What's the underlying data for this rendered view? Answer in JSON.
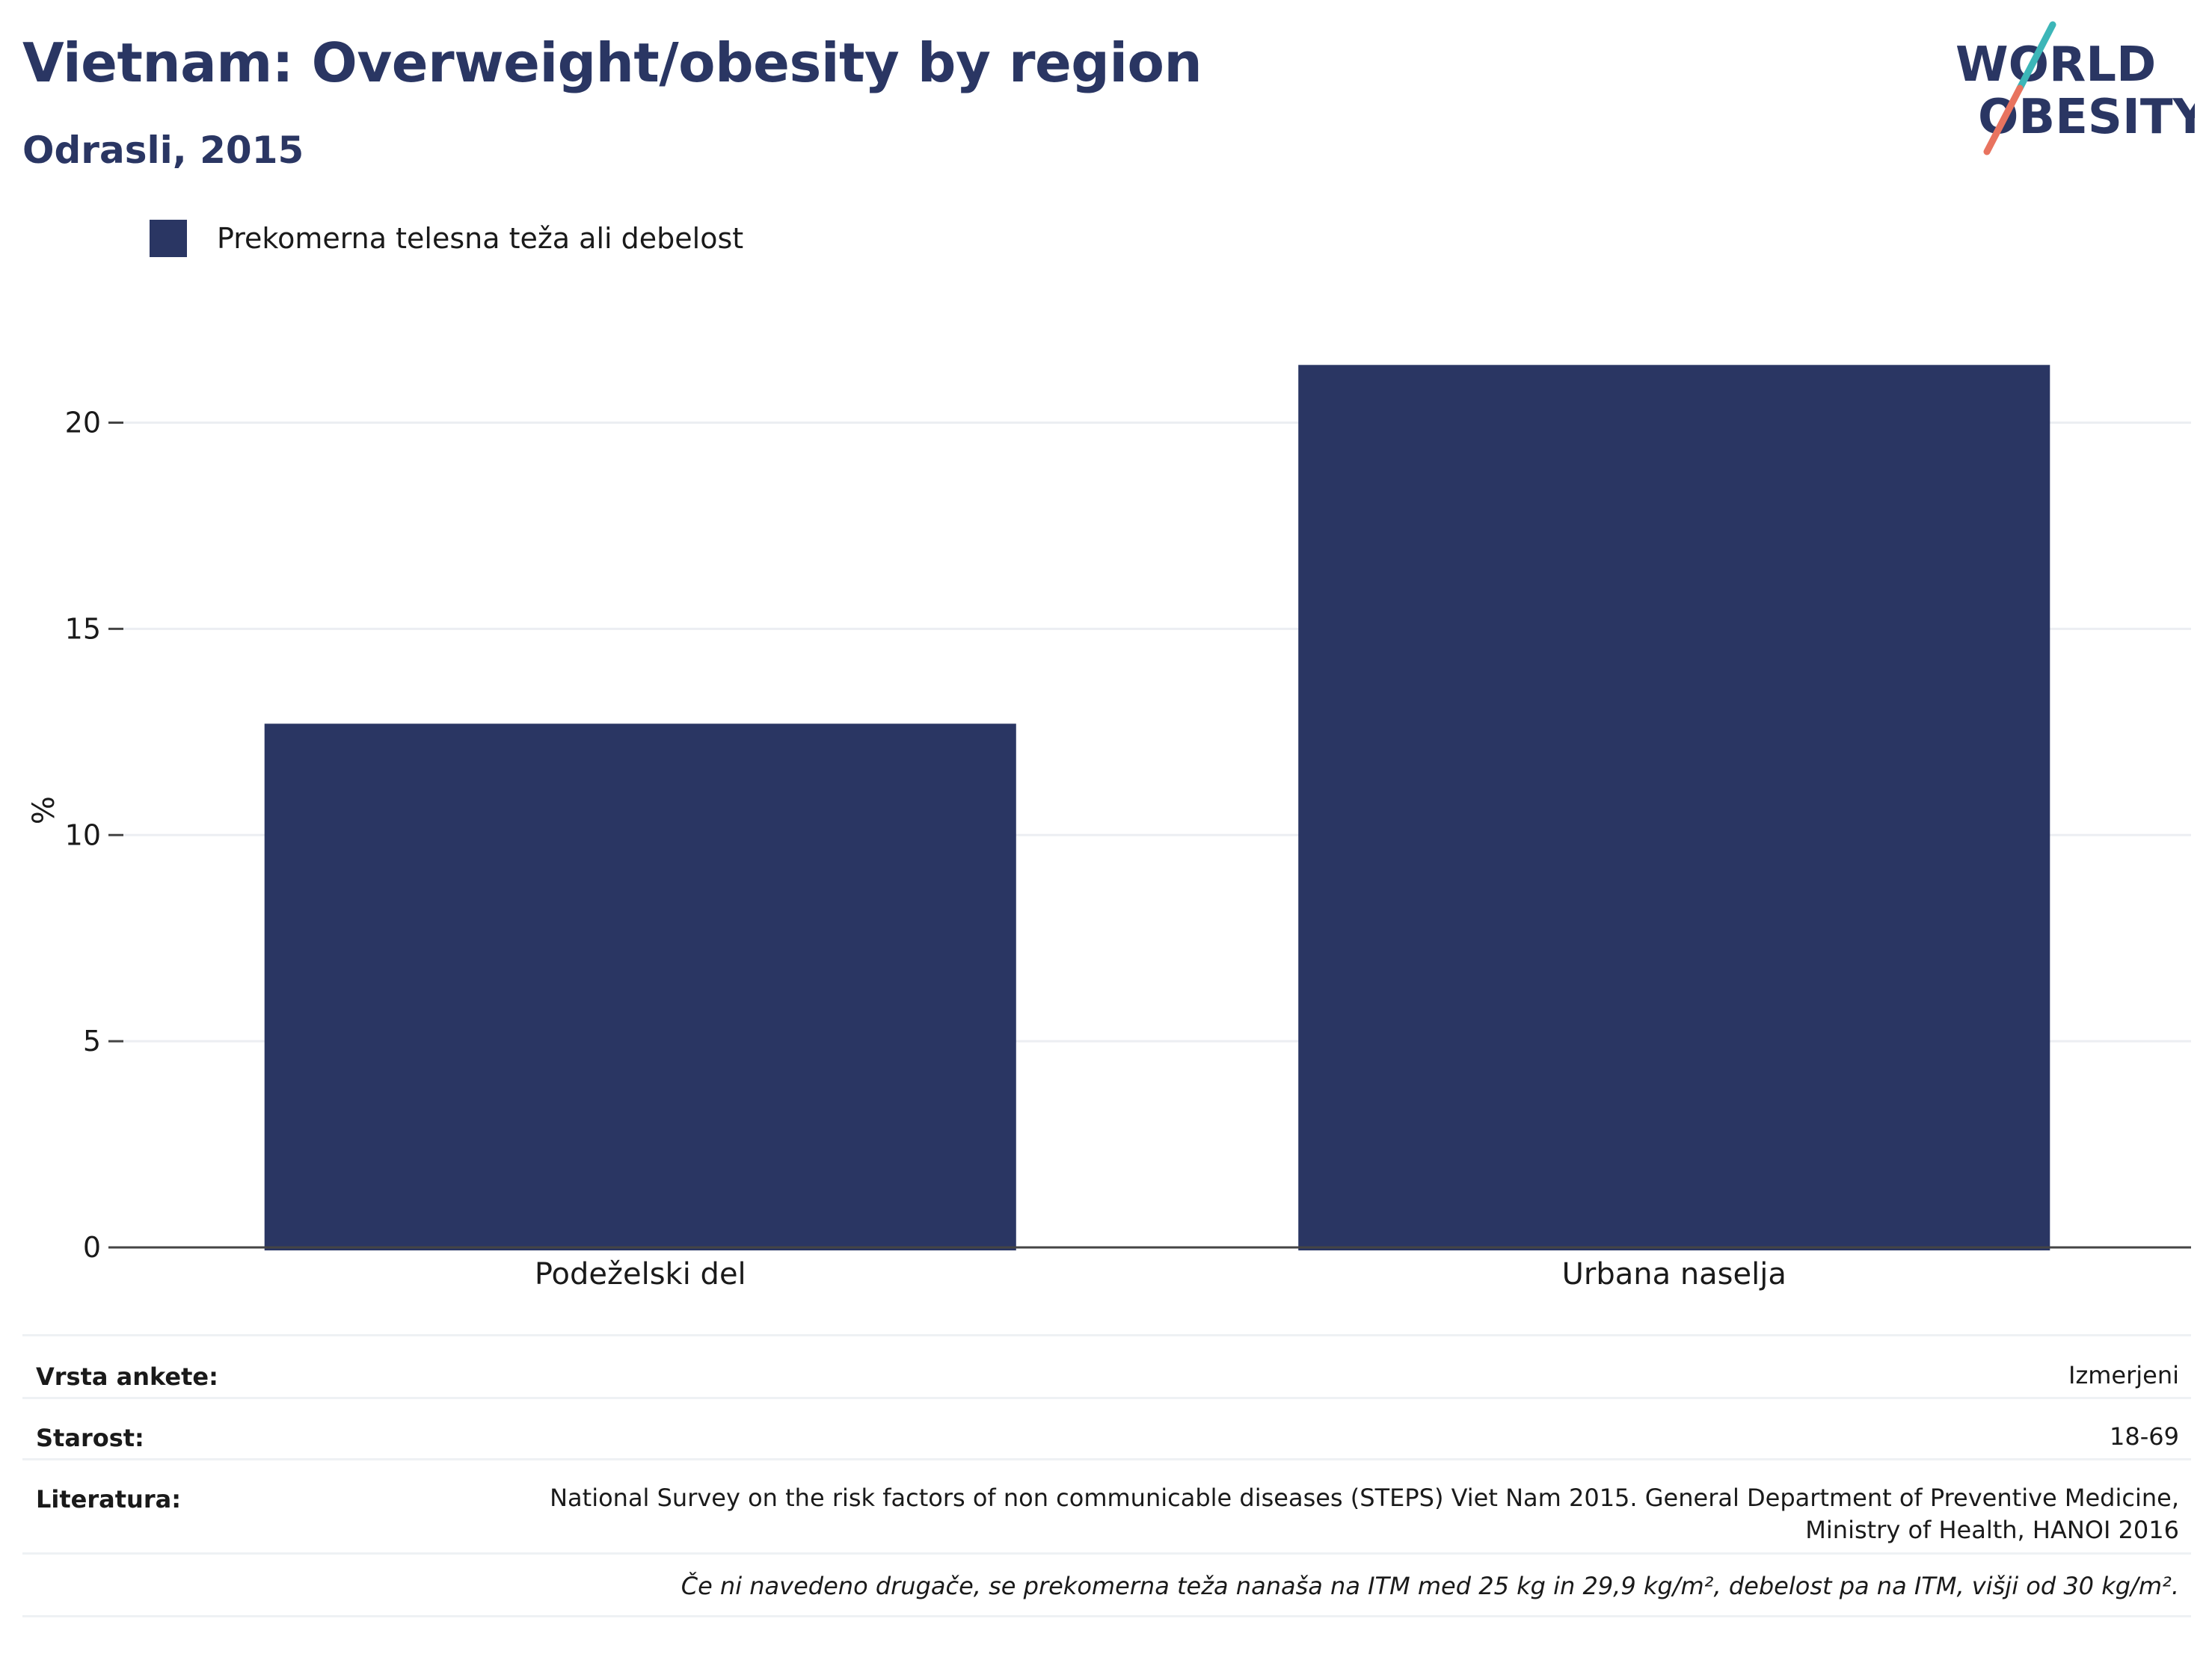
{
  "title": "Vietnam: Overweight/obesity by region",
  "subtitle": "Odrasli, 2015",
  "logo": {
    "line1": "WORLD",
    "line2": "OBESITY"
  },
  "chart_data": {
    "type": "bar",
    "categories": [
      "Podeželski del",
      "Urbana naselja"
    ],
    "series": [
      {
        "name": "Prekomerna telesna teža ali debelost",
        "values": [
          12.7,
          21.4
        ],
        "color": "#2a3663"
      }
    ],
    "ylabel": "%",
    "ylim": [
      0,
      23
    ],
    "yticks": [
      0,
      5,
      10,
      15,
      20
    ],
    "grid": true,
    "legend": "top-left"
  },
  "info": {
    "survey_type_label": "Vrsta ankete:",
    "survey_type_value": "Izmerjeni",
    "age_label": "Starost:",
    "age_value": "18-69",
    "reference_label": "Literatura:",
    "reference_line1": "National Survey on the risk factors of non communicable diseases (STEPS) Viet Nam 2015. General Department of Preventive Medicine,",
    "reference_line2": "Ministry of Health, HANOI 2016",
    "note": "Če ni navedeno drugače, se prekomerna teža nanaša na ITM med 25 kg in 29,9 kg/m², debelost pa na ITM, višji od 30 kg/m²."
  },
  "colors": {
    "bar": "#2a3663",
    "logo_teal": "#3cb6b8",
    "logo_coral": "#e8735f",
    "grid": "#eceef2",
    "axis": "#444444"
  }
}
